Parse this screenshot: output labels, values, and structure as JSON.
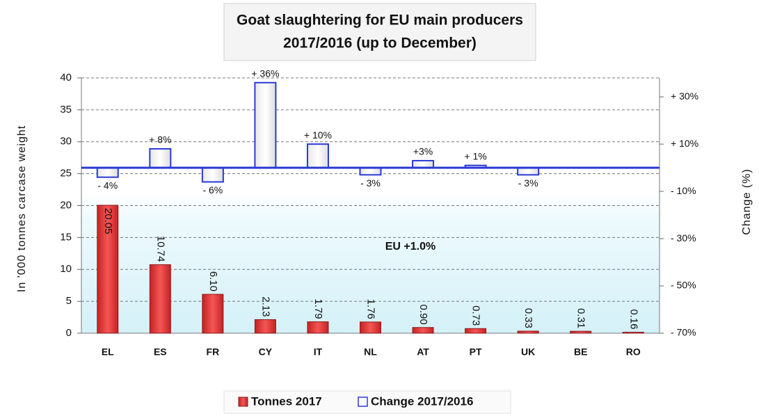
{
  "chart_data": {
    "type": "bar",
    "title": [
      "Goat slaughtering for EU main producers",
      "2017/2016 (up to December)"
    ],
    "categories": [
      "EL",
      "ES",
      "FR",
      "CY",
      "IT",
      "NL",
      "AT",
      "PT",
      "UK",
      "BE",
      "RO"
    ],
    "series": [
      {
        "name": "Tonnes 2017",
        "color": "#e8403f",
        "values": [
          20.05,
          10.74,
          6.1,
          2.13,
          1.79,
          1.76,
          0.9,
          0.73,
          0.33,
          0.31,
          0.16
        ],
        "value_labels": [
          "20.05",
          "10.74",
          "6.10",
          "2.13",
          "1.79",
          "1.76",
          "0.90",
          "0.73",
          "0.33",
          "0.31",
          "0.16"
        ]
      },
      {
        "name": "Change 2017/2016",
        "color": "#2a3ad8",
        "axis": "y2",
        "values": [
          -4,
          8,
          -6,
          36,
          10,
          -3,
          3,
          1,
          -3,
          null,
          null
        ],
        "value_labels": [
          "- 4%",
          "+ 8%",
          "- 6%",
          "+ 36%",
          "+ 10%",
          "- 3%",
          "+3%",
          "+ 1%",
          "- 3%",
          null,
          null
        ]
      }
    ],
    "ylabel": "In '000 tonnes carcase weight",
    "y2label": "Change (%)",
    "ylim": [
      0,
      40
    ],
    "yticks": [
      0,
      5,
      10,
      15,
      20,
      25,
      30,
      35,
      40
    ],
    "y2lim": [
      -70,
      38
    ],
    "y2ticks": [
      {
        "value": 30,
        "label": "+ 30%"
      },
      {
        "value": 10,
        "label": "+ 10%"
      },
      {
        "value": -10,
        "label": "- 10%"
      },
      {
        "value": -30,
        "label": "- 30%"
      },
      {
        "value": -50,
        "label": "- 50%"
      },
      {
        "value": -70,
        "label": "- 70%"
      }
    ],
    "annotation": "EU  +1.0%",
    "grid": true,
    "legend": "bottom"
  }
}
